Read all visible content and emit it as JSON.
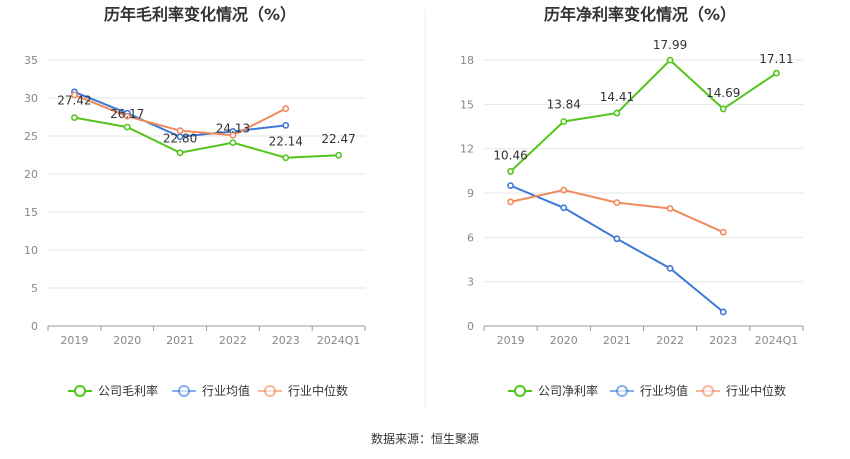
{
  "source": "数据来源：恒生聚源",
  "chart_data": [
    {
      "type": "line",
      "title": "历年毛利率变化情况（%）",
      "categories": [
        "2019",
        "2020",
        "2021",
        "2022",
        "2023",
        "2024Q1"
      ],
      "ylim": [
        0,
        35
      ],
      "yticks": [
        0,
        5,
        10,
        15,
        20,
        25,
        30,
        35
      ],
      "grid": true,
      "legend_position": "bottom",
      "series": [
        {
          "name": "公司毛利率",
          "color": "#52c41a",
          "labeled": true,
          "values": [
            27.42,
            26.17,
            22.8,
            24.13,
            22.14,
            22.47
          ]
        },
        {
          "name": "行业均值",
          "color": "#3c78d8",
          "labeled": false,
          "values": [
            30.8,
            28.0,
            24.9,
            25.6,
            26.4,
            null
          ]
        },
        {
          "name": "行业中位数",
          "color": "#f08a5d",
          "labeled": false,
          "values": [
            30.4,
            27.6,
            25.7,
            25.1,
            28.6,
            null
          ]
        }
      ],
      "labels": [
        "27.42",
        "26.17",
        "22.80",
        "24.13",
        "22.14",
        "22.47"
      ]
    },
    {
      "type": "line",
      "title": "历年净利率变化情况（%）",
      "categories": [
        "2019",
        "2020",
        "2021",
        "2022",
        "2023",
        "2024Q1"
      ],
      "ylim": [
        0,
        18
      ],
      "yticks": [
        0,
        3,
        6,
        9,
        12,
        15,
        18
      ],
      "grid": true,
      "legend_position": "bottom",
      "series": [
        {
          "name": "公司净利率",
          "color": "#52c41a",
          "labeled": true,
          "values": [
            10.46,
            13.84,
            14.41,
            17.99,
            14.69,
            17.11
          ]
        },
        {
          "name": "行业均值",
          "color": "#3c78d8",
          "labeled": false,
          "values": [
            9.5,
            8.0,
            5.9,
            3.9,
            0.95,
            null
          ]
        },
        {
          "name": "行业中位数",
          "color": "#f08a5d",
          "labeled": false,
          "values": [
            8.4,
            9.2,
            8.35,
            7.95,
            6.35,
            null
          ]
        }
      ],
      "labels": [
        "10.46",
        "13.84",
        "14.41",
        "17.99",
        "14.69",
        "17.11"
      ]
    }
  ]
}
